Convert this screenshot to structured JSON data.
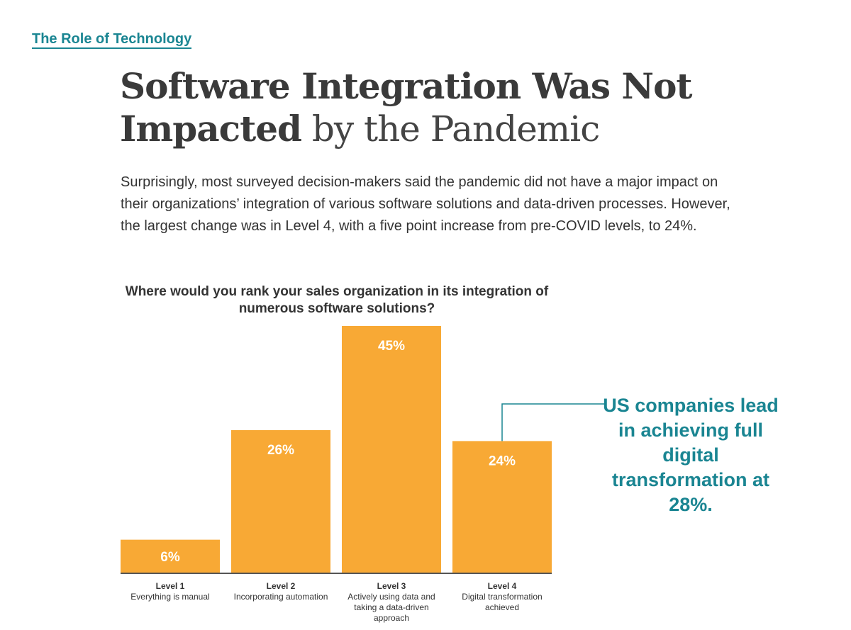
{
  "section_label": "The Role of Technology",
  "headline": {
    "bold_line1": "Software Integration Was Not",
    "bold_line2": "Impacted",
    "light": " by the Pandemic"
  },
  "intro": "Surprisingly, most surveyed decision-makers said the pandemic did not have a major impact on their organizations’ integration of various software solutions and data-driven processes. However, the largest change was in Level 4, with a five point increase from pre-COVID levels, to 24%.",
  "callout": "US companies lead in achieving full digital transformation at 28%.",
  "colors": {
    "bar": "#f8a935",
    "accent": "#1a8592",
    "axis": "#555555"
  },
  "chart_data": {
    "type": "bar",
    "title": "Where would you rank your sales organization in its integration of numerous software solutions?",
    "categories": [
      {
        "level": "Level 1",
        "desc": "Everything is manual"
      },
      {
        "level": "Level 2",
        "desc": "Incorporating automation"
      },
      {
        "level": "Level 3",
        "desc": "Actively using data and taking a data-driven approach"
      },
      {
        "level": "Level 4",
        "desc": "Digital transformation achieved"
      }
    ],
    "values": [
      6,
      26,
      45,
      24
    ],
    "value_labels": [
      "6%",
      "26%",
      "45%",
      "24%"
    ],
    "unit": "%",
    "grid": false,
    "annotated_category": 3
  }
}
